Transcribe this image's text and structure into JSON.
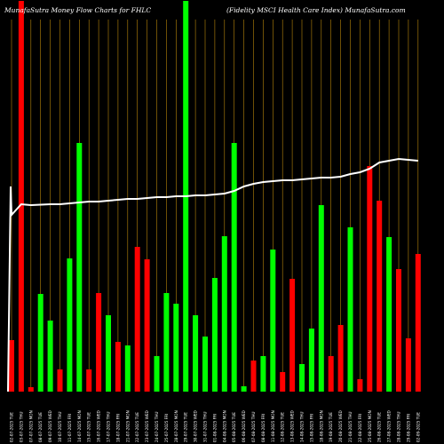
{
  "chart_data": {
    "type": "bar",
    "title_left": "MunafaSutra  Money Flow  Charts for FHLC",
    "title_right": "(Fidelity MSCI Health Care   Index) MunafaSutra.com",
    "categories": [
      "02-07-2025 TUE",
      "03-07-2025 THU",
      "07-07-2025 MON",
      "08-07-2025 TUE",
      "09-07-2025 WED",
      "10-07-2025 THU",
      "11-07-2025 FRI",
      "14-07-2025 MON",
      "15-07-2025 TUE",
      "16-07-2025 WED",
      "17-07-2025 THU",
      "18-07-2025 FRI",
      "21-07-2025 MON",
      "22-07-2025 TUE",
      "23-07-2025 WED",
      "24-07-2025 THU",
      "25-07-2025 FRI",
      "28-07-2025 MON",
      "29-07-2025 TUE",
      "30-07-2025 WED",
      "31-07-2025 THU",
      "01-08-2025 FRI",
      "04-08-2025 MON",
      "05-08-2025 TUE",
      "06-08-2025 WED",
      "07-08-2025 THU",
      "08-08-2025 FRI",
      "11-08-2025 MON",
      "12-08-2025 TUE",
      "13-08-2025 WED",
      "14-08-2025 THU",
      "15-08-2025 FRI",
      "18-08-2025 MON",
      "19-08-2025 TUE",
      "20-08-2025 WED",
      "21-08-2025 THU",
      "22-08-2025 FRI",
      "25-08-2025 MON",
      "26-08-2025 TUE",
      "27-08-2025 WED",
      "28-08-2025 THU",
      "29-08-2025 FRI",
      "02-09-2025 TUE"
    ],
    "volume_values": [
      58,
      440,
      5,
      110,
      80,
      25,
      150,
      280,
      25,
      111,
      86,
      56,
      52,
      163,
      149,
      40,
      111,
      99,
      440,
      86,
      62,
      128,
      175,
      280,
      6,
      35,
      40,
      160,
      22,
      127,
      31,
      71,
      210,
      40,
      75,
      185,
      14,
      254,
      215,
      174,
      138,
      60,
      155
    ],
    "volume_colors": [
      "#ff0000",
      "#ff0000",
      "#ff0000",
      "#00ff00",
      "#00ff00",
      "#ff0000",
      "#00ff00",
      "#00ff00",
      "#ff0000",
      "#ff0000",
      "#00ff00",
      "#ff0000",
      "#00ff00",
      "#ff0000",
      "#ff0000",
      "#00ff00",
      "#00ff00",
      "#00ff00",
      "#00ff00",
      "#00ff00",
      "#00ff00",
      "#00ff00",
      "#00ff00",
      "#00ff00",
      "#00ff00",
      "#ff0000",
      "#00ff00",
      "#00ff00",
      "#ff0000",
      "#ff0000",
      "#00ff00",
      "#00ff00",
      "#00ff00",
      "#ff0000",
      "#ff0000",
      "#00ff00",
      "#ff0000",
      "#ff0000",
      "#ff0000",
      "#00ff00",
      "#ff0000",
      "#ff0000",
      "#ff0000"
    ],
    "price_line": [
      242,
      230,
      231,
      230.5,
      230,
      230,
      229,
      228,
      227,
      227,
      226,
      225,
      224,
      224,
      223,
      222,
      222,
      221,
      221,
      220,
      220,
      219,
      218,
      215,
      210,
      207,
      205,
      204,
      203,
      203,
      202,
      201,
      200,
      200,
      199,
      196,
      194,
      190,
      183,
      181,
      179,
      180,
      181
    ],
    "price_line_start": 85,
    "ylim": [
      0,
      440
    ],
    "colors": {
      "background": "#000000",
      "up": "#00ff00",
      "down": "#ff0000",
      "grid": "#b8860b",
      "line": "#ffffff",
      "text": "#ffffff"
    }
  }
}
